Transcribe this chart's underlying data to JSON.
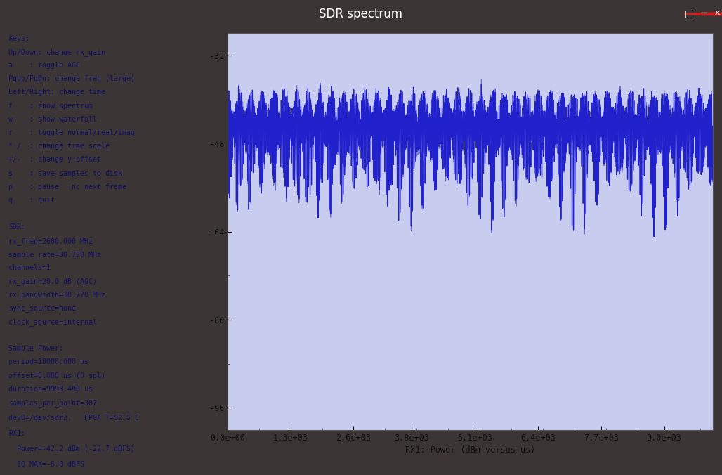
{
  "title": "SDR spectrum",
  "bg_color": "#c8ccee",
  "plot_bg_color": "#c8ccee",
  "line_color": "#2222cc",
  "xlabel": "RX1: Power (dBm versus us)",
  "xlim": [
    0,
    10000
  ],
  "ylim": [
    -100,
    -28
  ],
  "yticks": [
    -96,
    -80,
    -64,
    -48,
    -32
  ],
  "xtick_labels": [
    "0.0e+00",
    "1.3e+03",
    "2.6e+03",
    "3.8e+03",
    "5.1e+03",
    "6.4e+03",
    "7.7e+03",
    "9.0e+03"
  ],
  "xtick_positions": [
    0,
    1300,
    2600,
    3800,
    5100,
    6400,
    7700,
    9000
  ],
  "left_panel_text": [
    "Keys:",
    "Up/Down: change rx_gain",
    "a    : toggle AGC",
    "PgUp/PgDn: change freq (large)",
    "Left/Right: change time",
    "f    : show spectrum",
    "w    : show waterfall",
    "r    : toggle normal/real/imag",
    "* /  : change time scale",
    "+/-  : change y-offset",
    "s    : save samples to disk",
    "p    : pause   n: next frame",
    "q    : quit",
    "",
    "SDR:",
    "rx_freq=2680.000 MHz",
    "sample_rate=30.720 MHz",
    "channels=1",
    "rx_gain=20.0 dB (AGC)",
    "rx_bandwidth=30.720 MHz",
    "sync_source=none",
    "clock_source=internal",
    "",
    "Sample Power:",
    "period=10000.000 us",
    "offset=0.000 us (0 spl)",
    "duration=9993.490 us",
    "samples_per_point=307"
  ],
  "bottom_panel_text": [
    "dev0=/dev/sdr2,   FPGA T=52.5 C",
    "RX1:",
    "  Power=-42.2 dBm (-22.7 dBFS)",
    "  IQ MAX=-6.0 dBFS"
  ],
  "window_title": "SDR spectrum",
  "titlebar_bg": "#3c3535",
  "titlebar_text_color": "#ffffff",
  "left_text_color": "#111166",
  "separator_color": "#888888"
}
